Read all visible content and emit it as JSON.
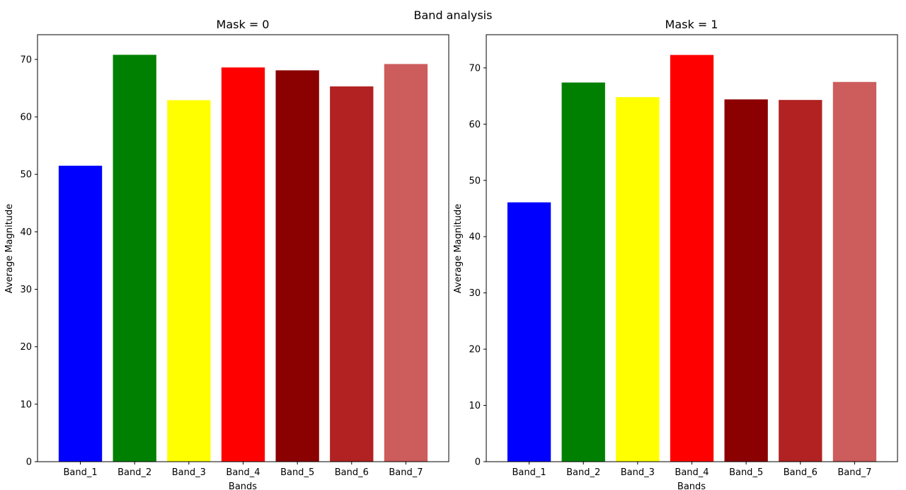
{
  "figure": {
    "suptitle": "Band analysis"
  },
  "chart_data": [
    {
      "type": "bar",
      "title": "Mask = 0",
      "xlabel": "Bands",
      "ylabel": "Average Magnitude",
      "categories": [
        "Band_1",
        "Band_2",
        "Band_3",
        "Band_4",
        "Band_5",
        "Band_6",
        "Band_7"
      ],
      "values": [
        51.5,
        70.8,
        62.9,
        68.6,
        68.1,
        65.3,
        69.2
      ],
      "colors": [
        "#0000ff",
        "#008000",
        "#ffff00",
        "#ff0000",
        "#8b0000",
        "#b22222",
        "#cd5c5c"
      ],
      "ylim": [
        0,
        74.3
      ],
      "yticks": [
        0,
        10,
        20,
        30,
        40,
        50,
        60,
        70
      ],
      "grid": false,
      "legend": "none"
    },
    {
      "type": "bar",
      "title": "Mask = 1",
      "xlabel": "Bands",
      "ylabel": "Average Magnitude",
      "categories": [
        "Band_1",
        "Band_2",
        "Band_3",
        "Band_4",
        "Band_5",
        "Band_6",
        "Band_7"
      ],
      "values": [
        46.1,
        67.4,
        64.8,
        72.3,
        64.4,
        64.3,
        67.5
      ],
      "colors": [
        "#0000ff",
        "#008000",
        "#ffff00",
        "#ff0000",
        "#8b0000",
        "#b22222",
        "#cd5c5c"
      ],
      "ylim": [
        0,
        75.9
      ],
      "yticks": [
        0,
        10,
        20,
        30,
        40,
        50,
        60,
        70
      ],
      "grid": false,
      "legend": "none"
    }
  ]
}
